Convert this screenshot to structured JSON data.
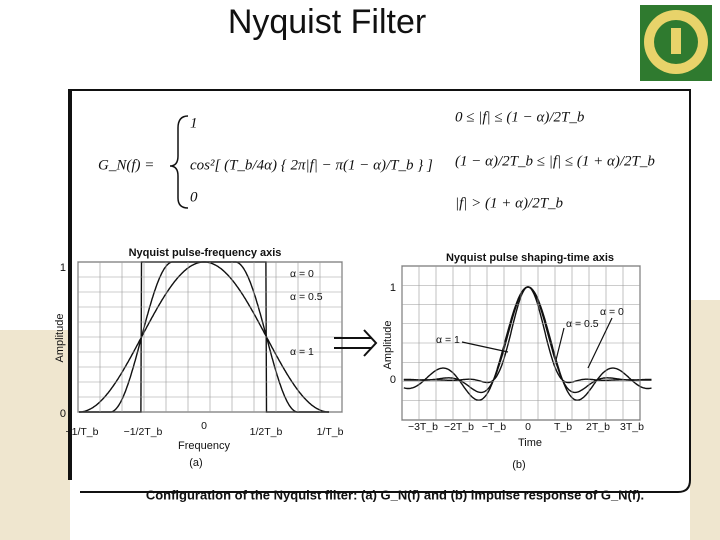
{
  "title": "Nyquist Filter",
  "equation": {
    "lhs": "G_N(f) =",
    "cases": [
      {
        "expression": "1",
        "condition": "0 ≤ |f| ≤ (1 − α)/2T_b"
      },
      {
        "expression": "cos²[ (T_b/4α) { 2π|f| − π(1 − α)/T_b } ]",
        "condition": "(1 − α)/2T_b ≤ |f| ≤ (1 + α)/2T_b"
      },
      {
        "expression": "0",
        "condition": "|f| > (1 + α)/2T_b"
      }
    ]
  },
  "figure_a": {
    "title": "Nyquist pulse-frequency axis",
    "y_axis_label": "Amplitude",
    "y_tick_labels": [
      "1",
      "0"
    ],
    "x_tick_labels": [
      "−1/T_b",
      "−1/2T_b",
      "0",
      "1/2T_b",
      "1/T_b"
    ],
    "x_axis_label": "Frequency",
    "panel_label": "(a)",
    "curve_labels": [
      "α = 0",
      "α = 0.5",
      "α = 1"
    ]
  },
  "figure_b": {
    "title": "Nyquist pulse shaping-time axis",
    "y_axis_label": "Amplitude",
    "y_tick_labels": [
      "1",
      "0"
    ],
    "x_tick_labels": [
      "−3T_b",
      "−2T_b",
      "−T_b",
      "0",
      "T_b",
      "2T_b",
      "3T_b"
    ],
    "x_axis_label": "Time",
    "panel_label": "(b)",
    "curve_labels": [
      "α = 1",
      "α = 0.5",
      "α = 0"
    ]
  },
  "caption": "Configuration of the Nyquist filter: (a) G_N(f) and (b) impulse response of G_N(f)."
}
